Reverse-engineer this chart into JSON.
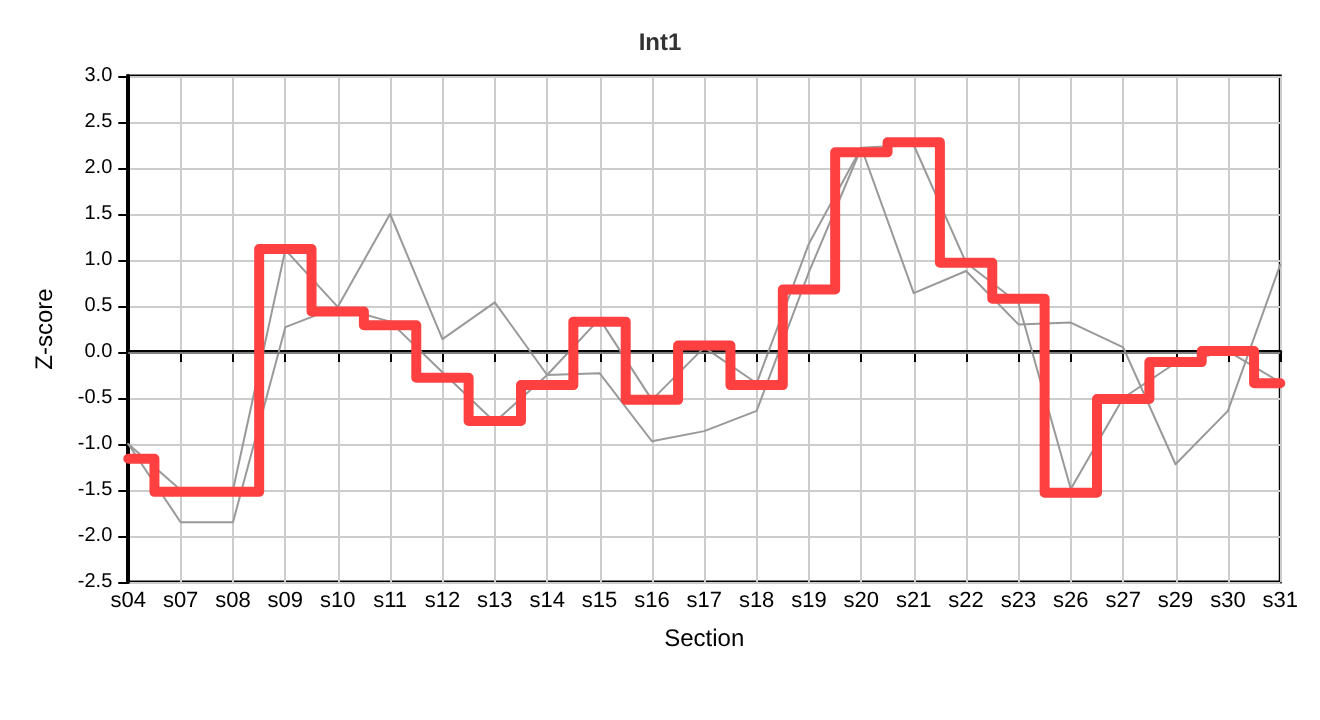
{
  "chart_data": {
    "type": "line",
    "title": "Int1",
    "xlabel": "Section",
    "ylabel": "Z-score",
    "categories": [
      "s04",
      "s07",
      "s08",
      "s09",
      "s10",
      "s11",
      "s12",
      "s13",
      "s14",
      "s15",
      "s16",
      "s17",
      "s18",
      "s19",
      "s20",
      "s21",
      "s22",
      "s23",
      "s26",
      "s27",
      "s29",
      "s30",
      "s31"
    ],
    "series": [
      {
        "color": "#999999",
        "values": [
          -1.0,
          -1.85,
          -1.85,
          0.27,
          0.49,
          1.5,
          0.14,
          0.54,
          -0.25,
          0.36,
          -0.52,
          0.05,
          -0.34,
          1.18,
          2.22,
          0.64,
          0.88,
          0.3,
          0.32,
          0.05,
          -1.22,
          -0.64,
          0.95
        ]
      },
      {
        "color": "#999999",
        "values": [
          -1.0,
          -1.5,
          -1.5,
          1.11,
          0.49,
          0.33,
          -0.22,
          -0.76,
          -0.25,
          -0.23,
          -0.97,
          -0.86,
          -0.64,
          0.87,
          2.22,
          2.25,
          0.97,
          0.53,
          -1.49,
          -0.5,
          -0.12,
          0.01,
          -0.33
        ]
      },
      {
        "type": "step",
        "color": "#ff4040",
        "values": [
          -1.16,
          -1.52,
          -1.52,
          1.12,
          0.44,
          0.29,
          -0.28,
          -0.75,
          -0.36,
          0.33,
          -0.52,
          0.07,
          -0.36,
          0.68,
          2.17,
          2.28,
          0.97,
          0.58,
          -1.53,
          -0.51,
          -0.11,
          0.01,
          -0.34
        ]
      }
    ],
    "ylim": [
      -2.5,
      3.0
    ],
    "yticks": [
      {
        "value": -2.5,
        "label": "-2.5"
      },
      {
        "value": -2,
        "label": "-2.0"
      },
      {
        "value": -1.5,
        "label": "-1.5"
      },
      {
        "value": -1,
        "label": "-1.0"
      },
      {
        "value": -0.5,
        "label": "-0.5"
      },
      {
        "value": 0,
        "label": "0.0"
      },
      {
        "value": 0.5,
        "label": "0.5"
      },
      {
        "value": 1,
        "label": "1.0"
      },
      {
        "value": 1.5,
        "label": "1.5"
      },
      {
        "value": 2,
        "label": "2.0"
      },
      {
        "value": 2.5,
        "label": "2.5"
      },
      {
        "value": 3,
        "label": "3.0"
      }
    ],
    "ref_lines": [
      {
        "axis": "y",
        "value": 0,
        "color": "#808080"
      }
    ],
    "grid": true,
    "marker": "none",
    "line_style": "solid"
  }
}
